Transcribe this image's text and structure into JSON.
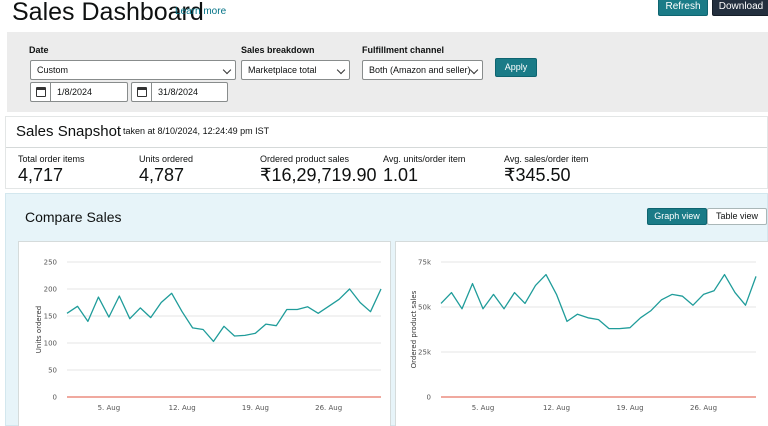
{
  "header": {
    "title": "Sales Dashboard",
    "learn_more": "Learn more",
    "refresh_label": "Refresh",
    "download_label": "Download"
  },
  "filters": {
    "date_label": "Date",
    "date_range_value": "Custom",
    "start_date": "1/8/2024",
    "end_date": "31/8/2024",
    "sales_breakdown_label": "Sales breakdown",
    "sales_breakdown_value": "Marketplace total",
    "fulfillment_label": "Fulfillment channel",
    "fulfillment_value": "Both (Amazon and seller)",
    "apply_label": "Apply"
  },
  "snapshot": {
    "title": "Sales Snapshot",
    "taken_at": "taken at 8/10/2024, 12:24:49 pm IST",
    "metrics": [
      {
        "label": "Total order items",
        "value": "4,717"
      },
      {
        "label": "Units ordered",
        "value": "4,787"
      },
      {
        "label": "Ordered product sales",
        "value": "₹16,29,719.90"
      },
      {
        "label": "Avg. units/order item",
        "value": "1.01"
      },
      {
        "label": "Avg. sales/order item",
        "value": "₹345.50"
      }
    ]
  },
  "compare": {
    "title": "Compare Sales",
    "graph_view_label": "Graph view",
    "table_view_label": "Table view"
  },
  "colors": {
    "accent": "#1a7b87",
    "line_current": "#1f9c9a",
    "line_baseline": "#e0533f"
  },
  "chart_data": [
    {
      "type": "line",
      "title": "",
      "xlabel": "",
      "ylabel": "Units ordered",
      "ylim": [
        0,
        250
      ],
      "yticks": [
        "0",
        "50",
        "100",
        "150",
        "200",
        "250"
      ],
      "x_ticks": [
        "5. Aug",
        "12. Aug",
        "19. Aug",
        "26. Aug"
      ],
      "x": [
        1,
        2,
        3,
        4,
        5,
        6,
        7,
        8,
        9,
        10,
        11,
        12,
        13,
        14,
        15,
        16,
        17,
        18,
        19,
        20,
        21,
        22,
        23,
        24,
        25,
        26,
        27,
        28,
        29,
        30,
        31
      ],
      "series": [
        {
          "values": [
            155,
            168,
            140,
            185,
            148,
            187,
            145,
            165,
            147,
            175,
            192,
            158,
            128,
            125,
            103,
            131,
            113,
            114,
            118,
            135,
            132,
            162,
            162,
            167,
            155,
            168,
            181,
            200,
            175,
            158,
            200
          ]
        },
        {
          "values": [
            0,
            0,
            0,
            0,
            0,
            0,
            0,
            0,
            0,
            0,
            0,
            0,
            0,
            0,
            0,
            0,
            0,
            0,
            0,
            0,
            0,
            0,
            0,
            0,
            0,
            0,
            0,
            0,
            0,
            0,
            0
          ]
        }
      ]
    },
    {
      "type": "line",
      "title": "",
      "xlabel": "",
      "ylabel": "Ordered product sales",
      "ylim": [
        0,
        75000
      ],
      "yticks": [
        "0",
        "25k",
        "50k",
        "75k"
      ],
      "x_ticks": [
        "5. Aug",
        "12. Aug",
        "19. Aug",
        "26. Aug"
      ],
      "x": [
        1,
        2,
        3,
        4,
        5,
        6,
        7,
        8,
        9,
        10,
        11,
        12,
        13,
        14,
        15,
        16,
        17,
        18,
        19,
        20,
        21,
        22,
        23,
        24,
        25,
        26,
        27,
        28,
        29,
        30,
        31
      ],
      "series": [
        {
          "values": [
            52000,
            58000,
            49000,
            63000,
            49000,
            57000,
            49000,
            58000,
            52000,
            62000,
            68000,
            57000,
            42000,
            46000,
            44000,
            43000,
            38000,
            38000,
            38500,
            44000,
            48000,
            54000,
            57000,
            56000,
            51000,
            57000,
            59000,
            68000,
            58000,
            51000,
            67000
          ]
        },
        {
          "values": [
            0,
            0,
            0,
            0,
            0,
            0,
            0,
            0,
            0,
            0,
            0,
            0,
            0,
            0,
            0,
            0,
            0,
            0,
            0,
            0,
            0,
            0,
            0,
            0,
            0,
            0,
            0,
            0,
            0,
            0,
            0
          ]
        }
      ]
    }
  ]
}
